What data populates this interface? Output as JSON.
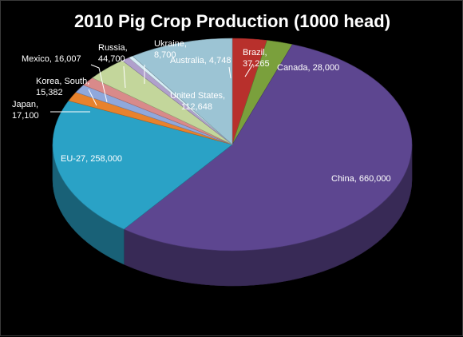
{
  "chart_data": {
    "type": "pie",
    "title": "2010 Pig Crop Production (1000 head)",
    "slices": [
      {
        "label": "Brazil",
        "value": 37265,
        "color": "#b8302c",
        "label_lines": [
          "Brazil,",
          "37,265"
        ]
      },
      {
        "label": "Canada",
        "value": 28000,
        "color": "#7aa03c",
        "label_lines": [
          "Canada, 28,000"
        ]
      },
      {
        "label": "China",
        "value": 660000,
        "color": "#5d4690",
        "label_lines": [
          "China, 660,000"
        ]
      },
      {
        "label": "EU-27",
        "value": 258000,
        "color": "#2aa2c6",
        "label_lines": [
          "EU-27, 258,000"
        ]
      },
      {
        "label": "Japan",
        "value": 17100,
        "color": "#e8822c",
        "label_lines": [
          "Japan,",
          "17,100"
        ]
      },
      {
        "label": "Korea, South",
        "value": 15382,
        "color": "#8fa8dc",
        "label_lines": [
          "Korea, South,",
          "15,382"
        ]
      },
      {
        "label": "Mexico",
        "value": 16007,
        "color": "#d98a8a",
        "label_lines": [
          "Mexico, 16,007"
        ]
      },
      {
        "label": "Russia",
        "value": 44700,
        "color": "#c3d69b",
        "label_lines": [
          "Russia,",
          "44,700"
        ]
      },
      {
        "label": "Ukraine",
        "value": 8700,
        "color": "#b0a0cc",
        "label_lines": [
          "Ukraine,",
          "8,700"
        ]
      },
      {
        "label": "Australia",
        "value": 4748,
        "color": "#d8eef6",
        "label_lines": [
          "Australia, 4,748"
        ]
      },
      {
        "label": "United States",
        "value": 112648,
        "color": "#9cc4d4",
        "label_lines": [
          "United States,",
          "112,648"
        ]
      }
    ]
  }
}
